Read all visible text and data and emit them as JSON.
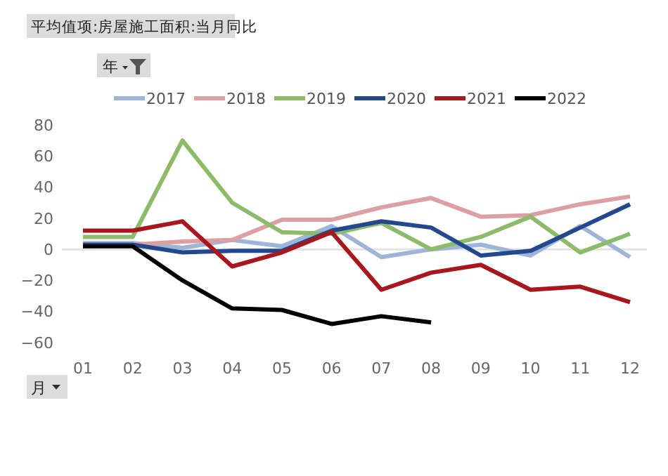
{
  "chart_data": {
    "type": "line",
    "title": "平均值项:房屋施工面积:当月同比",
    "annotations": [
      "年",
      "月"
    ],
    "categories": [
      "01",
      "02",
      "03",
      "04",
      "05",
      "06",
      "07",
      "08",
      "09",
      "10",
      "11",
      "12"
    ],
    "series": [
      {
        "name": "2017",
        "color": "#9eb4d8",
        "values": [
          4,
          4,
          1,
          6,
          2,
          15,
          -5,
          0,
          3,
          -4,
          15,
          -5
        ]
      },
      {
        "name": "2018",
        "color": "#dca0a4",
        "values": [
          2,
          3,
          5,
          6,
          19,
          19,
          27,
          33,
          21,
          22,
          29,
          34
        ]
      },
      {
        "name": "2019",
        "color": "#8dbb6a",
        "values": [
          8,
          8,
          70,
          30,
          11,
          10,
          17,
          0,
          8,
          21,
          -2,
          10
        ]
      },
      {
        "name": "2020",
        "color": "#24488e",
        "values": [
          3,
          3,
          -2,
          -1,
          -1,
          12,
          18,
          14,
          -4,
          -1,
          14,
          29
        ]
      },
      {
        "name": "2021",
        "color": "#a8171e",
        "values": [
          12,
          12,
          18,
          -11,
          -2,
          11,
          -26,
          -15,
          -10,
          -26,
          -24,
          -34
        ]
      },
      {
        "name": "2022",
        "color": "#000000",
        "values": [
          2,
          2,
          -20,
          -38,
          -39,
          -48,
          -43,
          -47,
          null,
          null,
          null,
          null
        ]
      }
    ],
    "ylim": [
      -60,
      80
    ],
    "yticks": [
      -60,
      -40,
      -20,
      0,
      20,
      40,
      60,
      80
    ],
    "ref_lines": [
      {
        "axis": "y",
        "value": 0,
        "color": "#e3e3e3"
      }
    ],
    "grid": false,
    "legend": "top",
    "marker": "none",
    "line_style": "solid"
  }
}
